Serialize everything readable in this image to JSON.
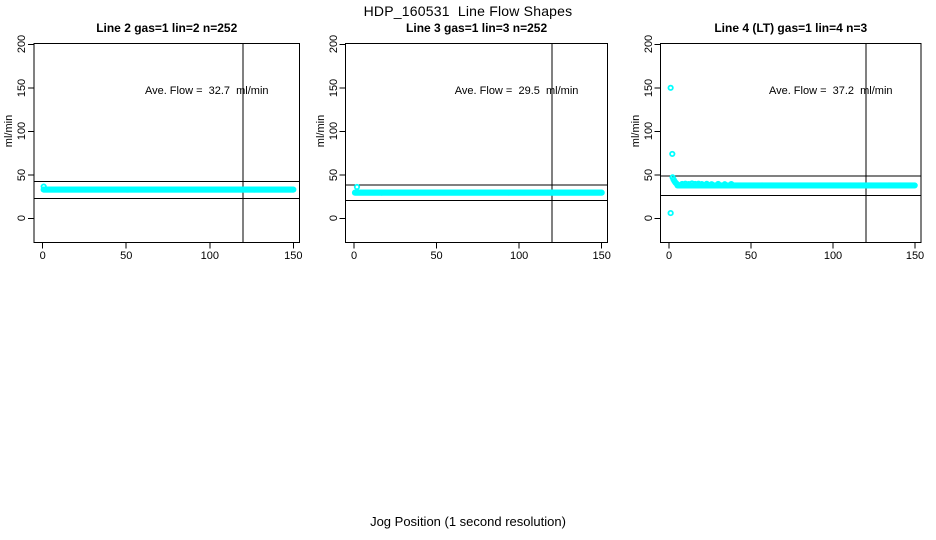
{
  "figure": {
    "title": "HDP_160531  Line Flow Shapes",
    "xlabel": "Jog Position (1 second resolution)",
    "ylabel": "ml/min",
    "background": "#FFFFFF",
    "point_color": "#00FFFF",
    "line_color": "#000000"
  },
  "axis": {
    "x_range": [
      0,
      150
    ],
    "y_range": [
      0,
      200
    ],
    "x_ticks": [
      0,
      50,
      100,
      150
    ],
    "y_ticks": [
      0,
      50,
      100,
      150,
      200
    ],
    "x_tick_labels": [
      "0",
      "50",
      "100",
      "150"
    ],
    "y_tick_labels": [
      "0",
      "50",
      "100",
      "150",
      "200"
    ],
    "grid": false
  },
  "chart_data": [
    {
      "type": "scatter",
      "title": "Line 2 gas=1 lin=2 n=252",
      "annotation": "Ave. Flow =  32.7  ml/min",
      "ave_flow": 32.7,
      "n": 252,
      "flat_band": {
        "x_start": 0.6,
        "x_end": 150,
        "value": 33,
        "step": 0.6
      },
      "extra_points": [
        {
          "x": 0.6,
          "y": 36.5
        }
      ],
      "bump_points": [],
      "ref_lines": {
        "upper": 42.5,
        "lower": 22.9,
        "vertical_x": 120
      }
    },
    {
      "type": "scatter",
      "title": "Line 3 gas=1 lin=3 n=252",
      "annotation": "Ave. Flow =  29.5  ml/min",
      "ave_flow": 29.5,
      "n": 252,
      "flat_band": {
        "x_start": 0.6,
        "x_end": 150,
        "value": 29.5,
        "step": 0.6
      },
      "extra_points": [
        {
          "x": 1.8,
          "y": 36
        }
      ],
      "bump_points": [],
      "ref_lines": {
        "upper": 38.4,
        "lower": 20.7,
        "vertical_x": 120
      }
    },
    {
      "type": "scatter",
      "title": "Line 4 (LT) gas=1 lin=4 n=3",
      "annotation": "Ave. Flow =  37.2  ml/min",
      "ave_flow": 37.2,
      "n": 3,
      "flat_band": {
        "x_start": 5.2,
        "x_end": 150,
        "value": 37.8,
        "step": 0.6
      },
      "extra_points": [
        {
          "x": 1,
          "y": 150
        },
        {
          "x": 2,
          "y": 74
        },
        {
          "x": 1,
          "y": 6
        },
        {
          "x": 2.2,
          "y": 47
        },
        {
          "x": 2.8,
          "y": 44.5
        },
        {
          "x": 3.4,
          "y": 42.5
        },
        {
          "x": 4,
          "y": 41
        },
        {
          "x": 4.6,
          "y": 39.8
        },
        {
          "x": 5.2,
          "y": 38.8
        }
      ],
      "bump_points": [
        {
          "x": 8,
          "y": 39.4
        },
        {
          "x": 10,
          "y": 39.8
        },
        {
          "x": 12,
          "y": 39.3
        },
        {
          "x": 14,
          "y": 40
        },
        {
          "x": 16,
          "y": 39.4
        },
        {
          "x": 18,
          "y": 39.7
        },
        {
          "x": 20,
          "y": 39.3
        },
        {
          "x": 23,
          "y": 39.6
        },
        {
          "x": 26,
          "y": 39.2
        },
        {
          "x": 30,
          "y": 39.5
        },
        {
          "x": 34,
          "y": 39.1
        },
        {
          "x": 38,
          "y": 39.3
        }
      ],
      "ref_lines": {
        "upper": 48.4,
        "lower": 26.0,
        "vertical_x": 120
      }
    }
  ]
}
